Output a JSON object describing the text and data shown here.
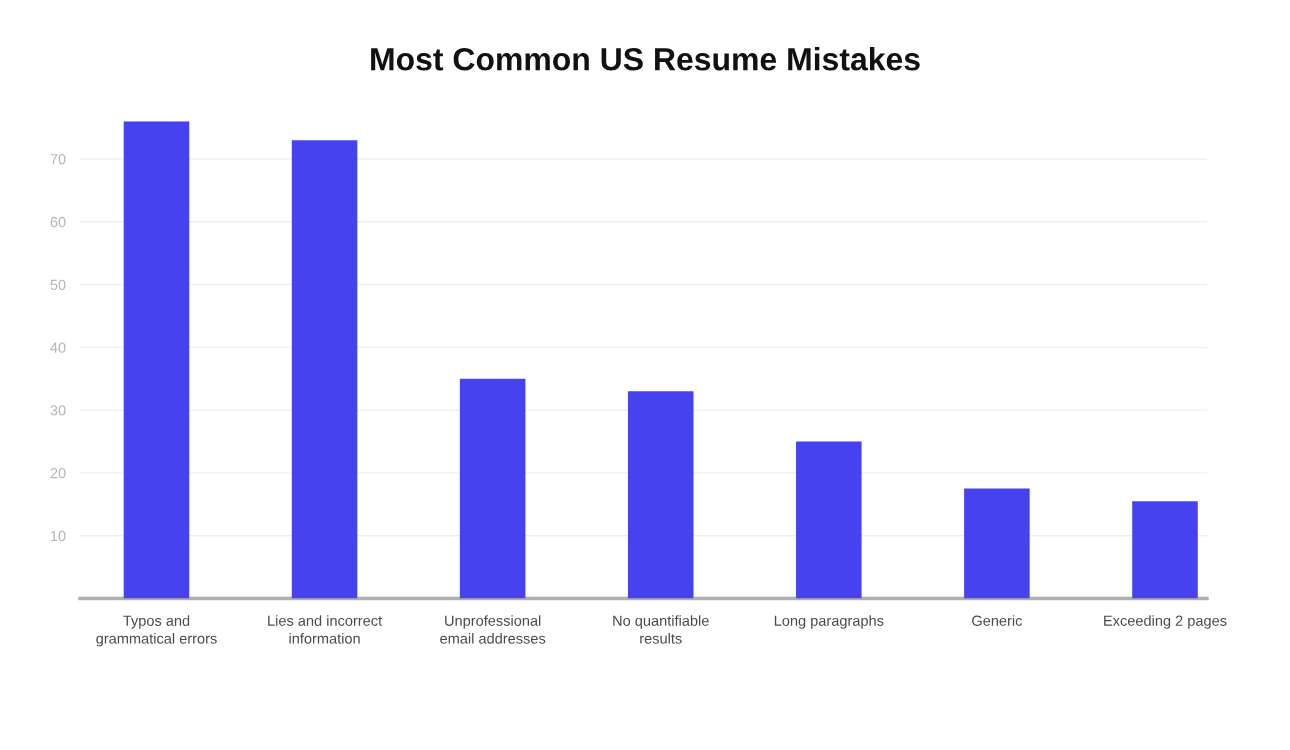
{
  "chart_data": {
    "type": "bar",
    "title": "Most Common US Resume Mistakes",
    "categories": [
      "Typos and\ngrammatical errors",
      "Lies and incorrect\ninformation",
      "Unprofessional\nemail addresses",
      "No quantifiable\nresults",
      "Long paragraphs",
      "Generic",
      "Exceeding 2 pages"
    ],
    "values": [
      76,
      73,
      35,
      33,
      25,
      17.5,
      15.5
    ],
    "color": "#4643ee",
    "ylim": [
      0,
      76
    ],
    "yticks": [
      10,
      20,
      30,
      40,
      50,
      60,
      70
    ],
    "grid": "y"
  }
}
